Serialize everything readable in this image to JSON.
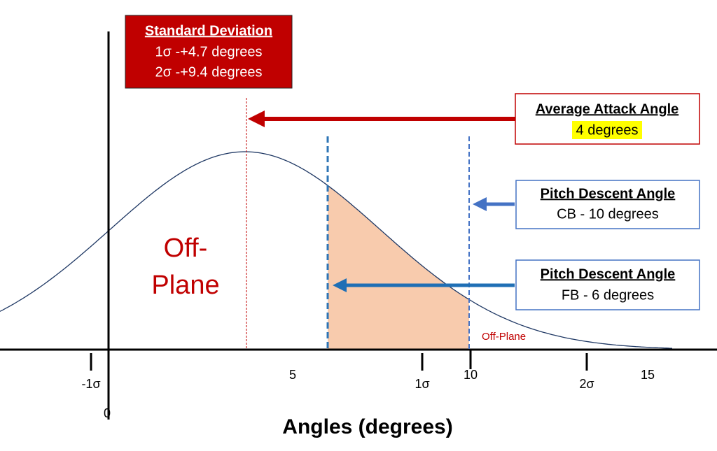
{
  "standard_deviation": {
    "title": "Standard Deviation",
    "lines": [
      "1σ -+4.7 degrees",
      "2σ -+9.4 degrees"
    ]
  },
  "attack_angle": {
    "title": "Average Attack Angle",
    "value": "4 degrees"
  },
  "pitch_boxes": [
    {
      "title": "Pitch Descent Angle",
      "value": "CB - 10 degrees"
    },
    {
      "title": "Pitch Descent Angle",
      "value": "FB - 6 degrees"
    }
  ],
  "region_label": [
    "Off-",
    "Plane"
  ],
  "small_label": "Off-Plane",
  "axis": {
    "ticks": [
      "-1σ",
      "5",
      "1σ",
      "10",
      "2σ",
      "15"
    ],
    "origin": "0",
    "title": "Angles (degrees)"
  }
}
